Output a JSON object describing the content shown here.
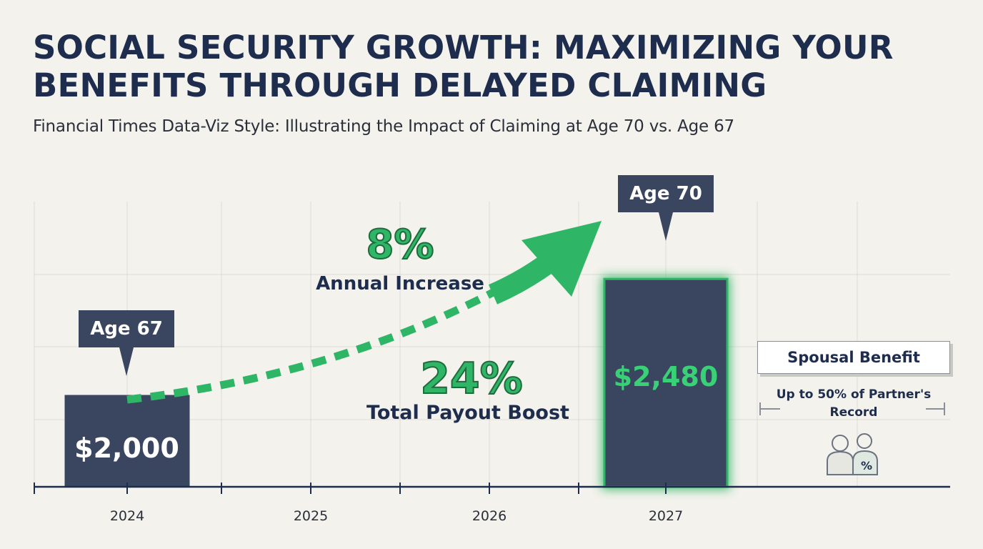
{
  "header": {
    "title": "SOCIAL SECURITY GROWTH: MAXIMIZING YOUR BENEFITS THROUGH DELAYED CLAIMING",
    "subtitle": "Financial Times Data-Viz Style: Illustrating the Impact of Claiming at Age 70 vs. Age 67"
  },
  "callouts": {
    "age67": "Age 67",
    "age70": "Age 70",
    "annual_pct": "8%",
    "annual_label": "Annual Increase",
    "total_pct": "24%",
    "total_label": "Total Payout Boost"
  },
  "spousal": {
    "title": "Spousal Benefit",
    "desc": "Up to 50% of Partner's Record",
    "icon": "couple-percent-icon"
  },
  "colors": {
    "navy": "#3a4560",
    "green": "#2fb566",
    "dark_text": "#1e2d4d",
    "background": "#f3f2ec"
  },
  "chart_data": {
    "type": "bar",
    "categories": [
      "2024",
      "2025",
      "2026",
      "2027"
    ],
    "values": [
      2000,
      null,
      null,
      2480
    ],
    "value_labels": [
      "$2,000",
      "",
      "",
      "$2,480"
    ],
    "highlight_index": 3,
    "title": "SOCIAL SECURITY GROWTH: MAXIMIZING YOUR BENEFITS THROUGH DELAYED CLAIMING",
    "xlabel": "",
    "ylabel": "",
    "ylim": [
      1620,
      2800
    ],
    "grid": true,
    "trend_arrow": {
      "from": "2024",
      "to": "2027"
    }
  }
}
